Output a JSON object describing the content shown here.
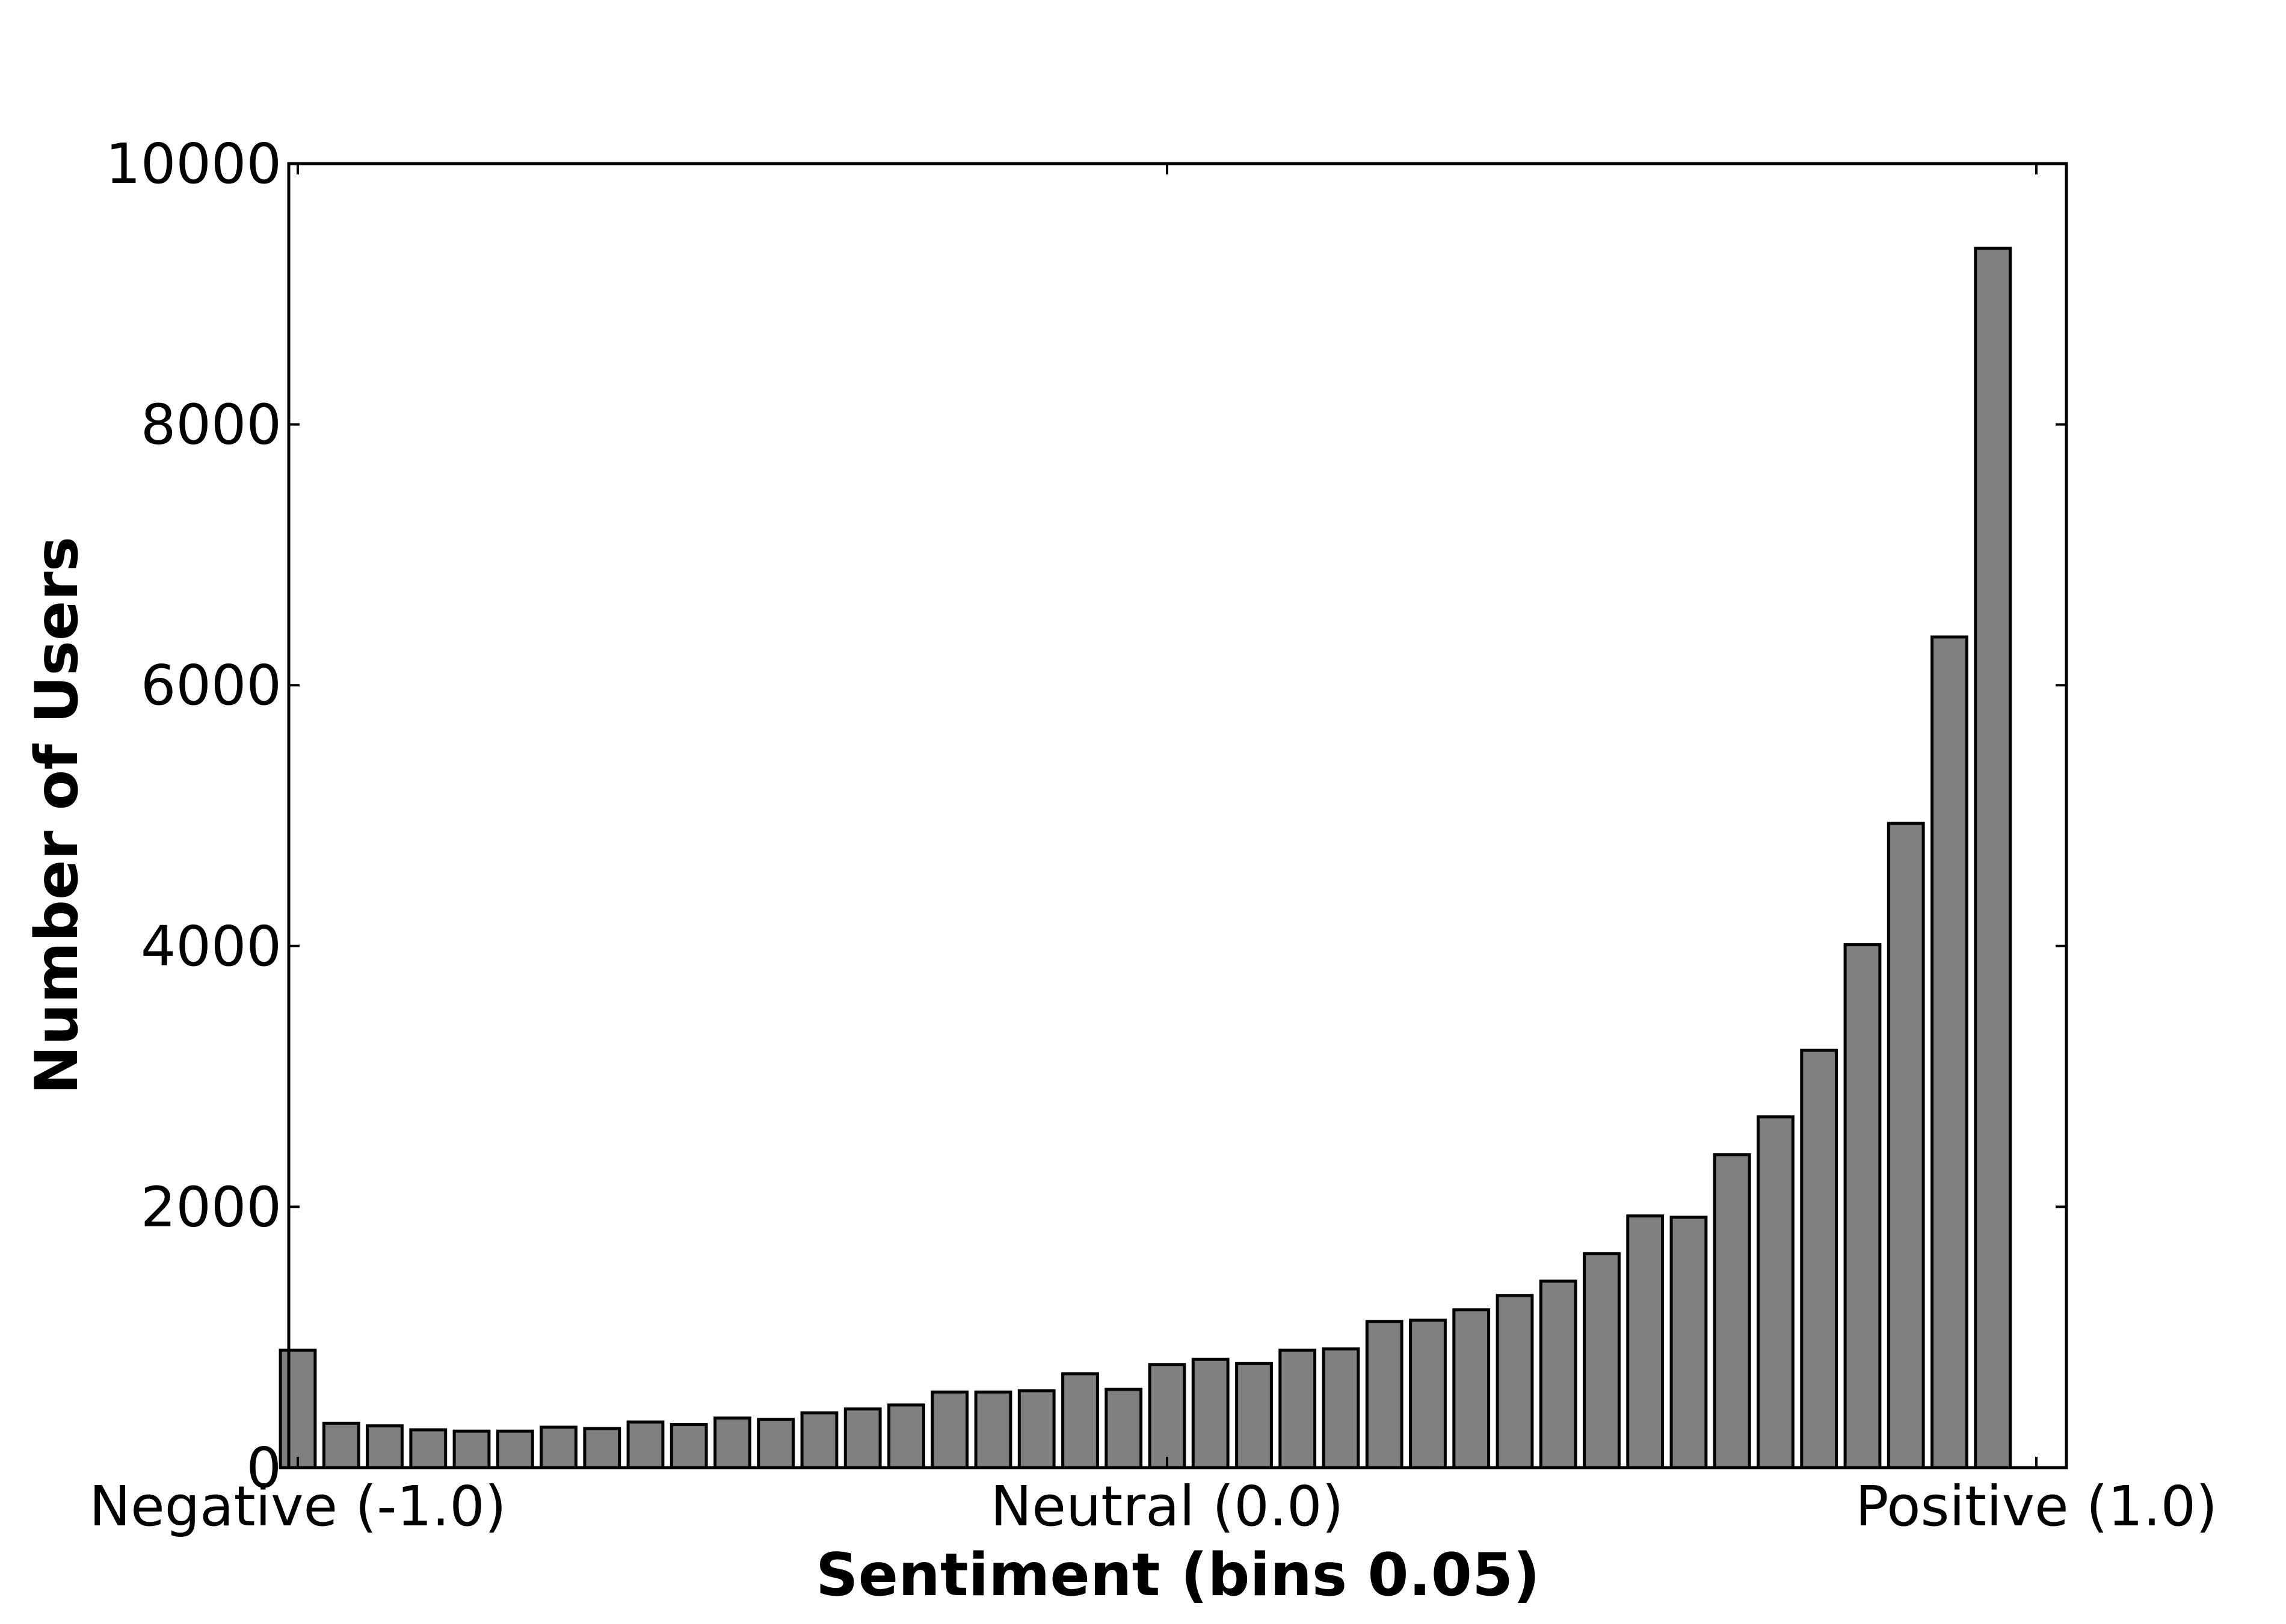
{
  "colors": {
    "bar_fill": "#808080",
    "bar_edge": "#000000",
    "axis": "#000000",
    "background": "#ffffff"
  },
  "chart_data": {
    "type": "bar",
    "title": "",
    "xlabel": "Sentiment (bins 0.05)",
    "ylabel": "Number of Users",
    "xlim": [
      -1.0,
      1.0
    ],
    "ylim": [
      0,
      10000
    ],
    "grid": false,
    "legend": "none",
    "x_ticks": [
      {
        "value": -1.0,
        "label": "Negative (-1.0)"
      },
      {
        "value": 0.0,
        "label": "Neutral (0.0)"
      },
      {
        "value": 1.0,
        "label": "Positive (1.0)"
      }
    ],
    "y_ticks": [
      {
        "value": 0,
        "label": "0"
      },
      {
        "value": 2000,
        "label": "2000"
      },
      {
        "value": 4000,
        "label": "4000"
      },
      {
        "value": 6000,
        "label": "6000"
      },
      {
        "value": 8000,
        "label": "8000"
      },
      {
        "value": 10000,
        "label": "10000"
      }
    ],
    "bin_width": 0.05,
    "bin_starts": [
      -1.0,
      -0.95,
      -0.9,
      -0.85,
      -0.8,
      -0.75,
      -0.7,
      -0.65,
      -0.6,
      -0.55,
      -0.5,
      -0.45,
      -0.4,
      -0.35,
      -0.3,
      -0.25,
      -0.2,
      -0.15,
      -0.1,
      -0.05,
      0.0,
      0.05,
      0.1,
      0.15,
      0.2,
      0.25,
      0.3,
      0.35,
      0.4,
      0.45,
      0.5,
      0.55,
      0.6,
      0.65,
      0.7,
      0.75,
      0.8,
      0.85,
      0.9,
      0.95
    ],
    "values": [
      900,
      340,
      320,
      290,
      280,
      280,
      310,
      300,
      350,
      330,
      380,
      370,
      420,
      450,
      480,
      580,
      580,
      590,
      720,
      600,
      790,
      830,
      800,
      900,
      910,
      1120,
      1130,
      1210,
      1320,
      1430,
      1640,
      1930,
      1920,
      2400,
      2690,
      3200,
      4010,
      4940,
      6370,
      9350
    ]
  }
}
